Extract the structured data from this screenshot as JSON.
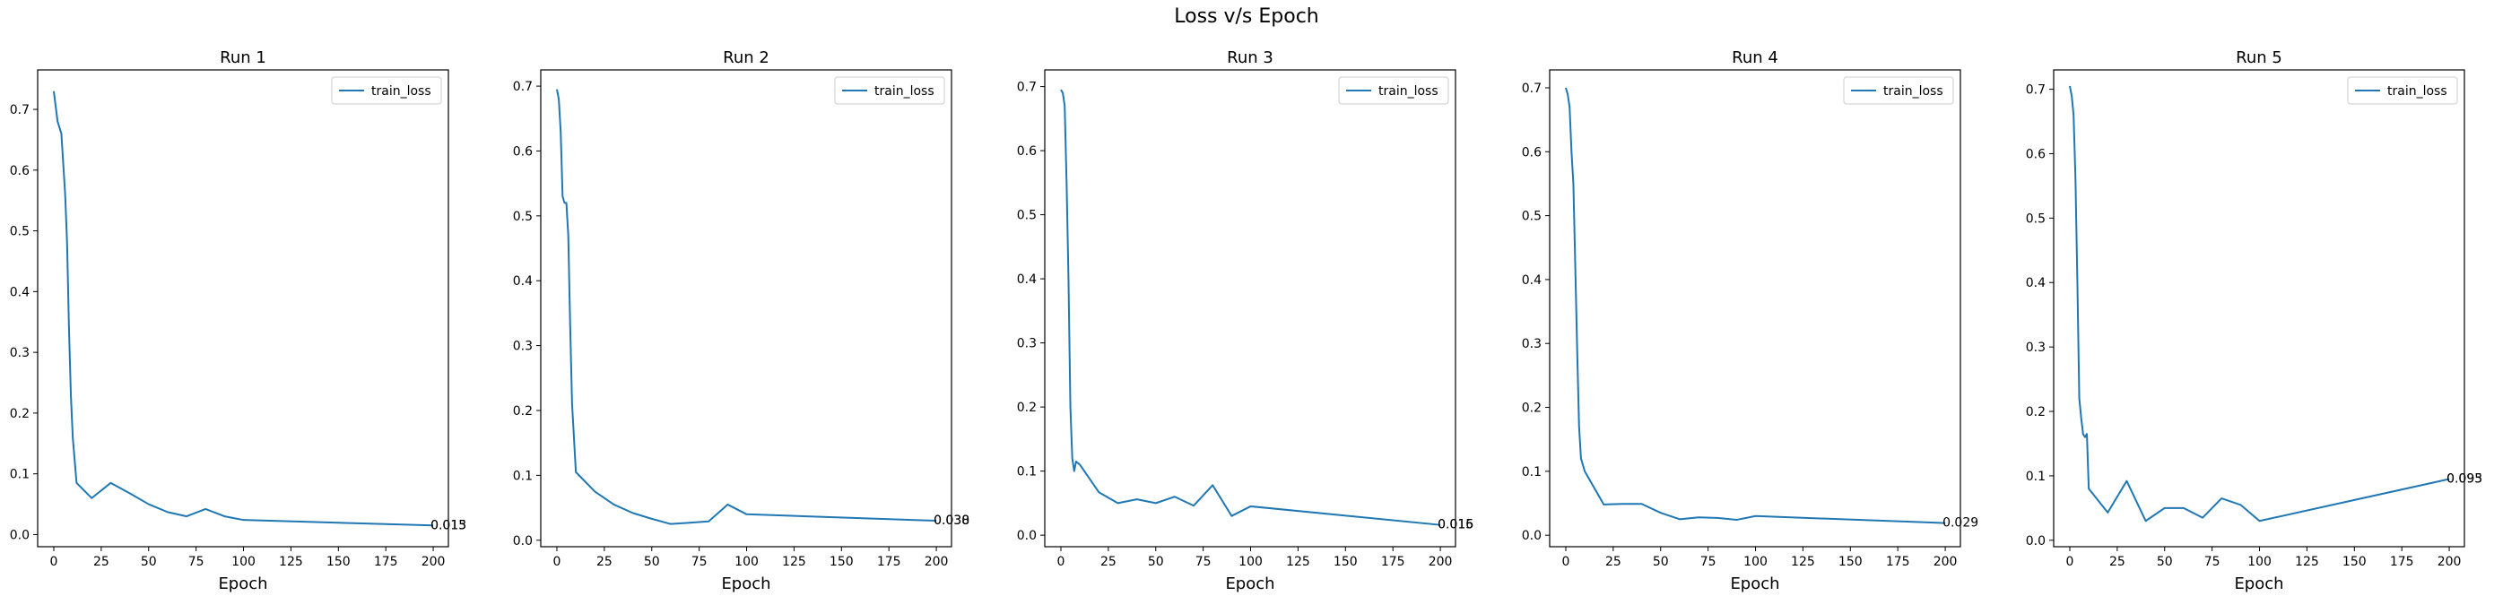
{
  "figure": {
    "title": "Loss v/s Epoch"
  },
  "chart_data": [
    {
      "type": "line",
      "title": "Run 1",
      "xlabel": "Epoch",
      "ylabel": "",
      "xlim": [
        -8.5,
        208
      ],
      "ylim": [
        -0.02,
        0.765
      ],
      "xticks": [
        0,
        25,
        50,
        75,
        100,
        125,
        150,
        175,
        200
      ],
      "yticks": [
        0.0,
        0.1,
        0.2,
        0.3,
        0.4,
        0.5,
        0.6,
        0.7
      ],
      "ytick_labels": [
        "0.0",
        "0.1",
        "0.2",
        "0.3",
        "0.4",
        "0.5",
        "0.6",
        "0.7"
      ],
      "legend": {
        "entries": [
          "train_loss"
        ],
        "position": "upper right"
      },
      "series": [
        {
          "name": "train_loss",
          "color": "#1f77b4",
          "x": [
            0,
            2,
            4,
            6,
            7,
            8,
            9,
            10,
            12,
            20,
            30,
            40,
            50,
            60,
            70,
            80,
            90,
            100,
            200
          ],
          "y": [
            0.73,
            0.68,
            0.66,
            0.56,
            0.48,
            0.34,
            0.23,
            0.16,
            0.085,
            0.06,
            0.085,
            0.068,
            0.05,
            0.037,
            0.03,
            0.042,
            0.03,
            0.024,
            0.015
          ]
        }
      ],
      "annotations": [
        "0.015",
        "0.013"
      ]
    },
    {
      "type": "line",
      "title": "Run 2",
      "xlabel": "Epoch",
      "ylabel": "",
      "xlim": [
        -8.5,
        208
      ],
      "ylim": [
        -0.01,
        0.725
      ],
      "xticks": [
        0,
        25,
        50,
        75,
        100,
        125,
        150,
        175,
        200
      ],
      "yticks": [
        0.0,
        0.1,
        0.2,
        0.3,
        0.4,
        0.5,
        0.6,
        0.7
      ],
      "ytick_labels": [
        "0.0",
        "0.1",
        "0.2",
        "0.3",
        "0.4",
        "0.5",
        "0.6",
        "0.7"
      ],
      "legend": {
        "entries": [
          "train_loss"
        ],
        "position": "upper right"
      },
      "series": [
        {
          "name": "train_loss",
          "color": "#1f77b4",
          "x": [
            0,
            1,
            2,
            3,
            4,
            5,
            6,
            7,
            8,
            10,
            20,
            30,
            40,
            50,
            60,
            70,
            80,
            90,
            100,
            200
          ],
          "y": [
            0.695,
            0.68,
            0.63,
            0.53,
            0.52,
            0.52,
            0.47,
            0.33,
            0.21,
            0.105,
            0.075,
            0.055,
            0.042,
            0.033,
            0.025,
            0.027,
            0.029,
            0.055,
            0.04,
            0.03
          ]
        }
      ],
      "annotations": [
        "0.030",
        "0.038"
      ]
    },
    {
      "type": "line",
      "title": "Run 3",
      "xlabel": "Epoch",
      "ylabel": "",
      "xlim": [
        -8.5,
        208
      ],
      "ylim": [
        -0.018,
        0.726
      ],
      "xticks": [
        0,
        25,
        50,
        75,
        100,
        125,
        150,
        175,
        200
      ],
      "yticks": [
        0.0,
        0.1,
        0.2,
        0.3,
        0.4,
        0.5,
        0.6,
        0.7
      ],
      "ytick_labels": [
        "0.0",
        "0.1",
        "0.2",
        "0.3",
        "0.4",
        "0.5",
        "0.6",
        "0.7"
      ],
      "legend": {
        "entries": [
          "train_loss"
        ],
        "position": "upper right"
      },
      "series": [
        {
          "name": "train_loss",
          "color": "#1f77b4",
          "x": [
            0,
            1,
            2,
            3,
            4,
            5,
            6,
            7,
            8,
            10,
            20,
            30,
            40,
            50,
            60,
            70,
            80,
            90,
            100,
            200
          ],
          "y": [
            0.695,
            0.69,
            0.67,
            0.55,
            0.4,
            0.2,
            0.12,
            0.1,
            0.115,
            0.11,
            0.067,
            0.05,
            0.056,
            0.05,
            0.06,
            0.046,
            0.078,
            0.03,
            0.045,
            0.016
          ]
        }
      ],
      "annotations": [
        "0.016",
        "0.015"
      ]
    },
    {
      "type": "line",
      "title": "Run 4",
      "xlabel": "Epoch",
      "ylabel": "",
      "xlim": [
        -8.5,
        208
      ],
      "ylim": [
        -0.018,
        0.728
      ],
      "xticks": [
        0,
        25,
        50,
        75,
        100,
        125,
        150,
        175,
        200
      ],
      "yticks": [
        0.0,
        0.1,
        0.2,
        0.3,
        0.4,
        0.5,
        0.6,
        0.7
      ],
      "ytick_labels": [
        "0.0",
        "0.1",
        "0.2",
        "0.3",
        "0.4",
        "0.5",
        "0.6",
        "0.7"
      ],
      "legend": {
        "entries": [
          "train_loss"
        ],
        "position": "upper right"
      },
      "series": [
        {
          "name": "train_loss",
          "color": "#1f77b4",
          "x": [
            0,
            1,
            2,
            3,
            4,
            5,
            6,
            7,
            8,
            10,
            20,
            30,
            40,
            50,
            60,
            70,
            80,
            90,
            100,
            200
          ],
          "y": [
            0.7,
            0.69,
            0.67,
            0.6,
            0.55,
            0.42,
            0.29,
            0.17,
            0.12,
            0.1,
            0.048,
            0.049,
            0.049,
            0.035,
            0.025,
            0.028,
            0.027,
            0.024,
            0.03,
            0.019
          ]
        }
      ],
      "annotations": [
        "0.029"
      ]
    },
    {
      "type": "line",
      "title": "Run 5",
      "xlabel": "Epoch",
      "ylabel": "",
      "xlim": [
        -8.5,
        208
      ],
      "ylim": [
        -0.01,
        0.73
      ],
      "xticks": [
        0,
        25,
        50,
        75,
        100,
        125,
        150,
        175,
        200
      ],
      "yticks": [
        0.0,
        0.1,
        0.2,
        0.3,
        0.4,
        0.5,
        0.6,
        0.7
      ],
      "ytick_labels": [
        "0.0",
        "0.1",
        "0.2",
        "0.3",
        "0.4",
        "0.5",
        "0.6",
        "0.7"
      ],
      "legend": {
        "entries": [
          "train_loss"
        ],
        "position": "upper right"
      },
      "series": [
        {
          "name": "train_loss",
          "color": "#1f77b4",
          "x": [
            0,
            1,
            2,
            3,
            4,
            5,
            6,
            7,
            8,
            9,
            10,
            20,
            30,
            40,
            50,
            60,
            70,
            80,
            90,
            100,
            200
          ],
          "y": [
            0.705,
            0.69,
            0.66,
            0.56,
            0.4,
            0.22,
            0.19,
            0.165,
            0.16,
            0.165,
            0.08,
            0.043,
            0.092,
            0.03,
            0.05,
            0.05,
            0.035,
            0.065,
            0.055,
            0.03,
            0.095
          ]
        }
      ],
      "annotations": [
        "0.095",
        "0.093"
      ]
    }
  ]
}
